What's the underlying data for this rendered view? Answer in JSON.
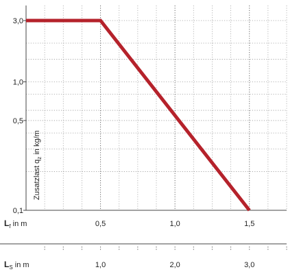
{
  "chart_data": {
    "type": "line",
    "y_scale": "log",
    "ylabel_main": "Zusatzlast q",
    "ylabel_sub": "z",
    "ylabel_unit": " in kg/m",
    "ylim": [
      0.1,
      4.0
    ],
    "yticks": [
      3.0,
      1.0,
      0.5,
      0.1
    ],
    "ytick_labels": [
      "3,0",
      "1,0",
      "0,5",
      "0,1"
    ],
    "x_primary": {
      "label_main": "L",
      "label_sub": "f",
      "label_unit": "in m",
      "xlim": [
        0,
        1.75
      ],
      "ticks": [
        0.5,
        1.0,
        1.5
      ],
      "tick_labels": [
        "0,5",
        "1,0",
        "1,5"
      ]
    },
    "x_secondary": {
      "label_main": "L",
      "label_sub": "S",
      "label_unit": "in m",
      "xlim": [
        0,
        3.5
      ],
      "ticks": [
        1.0,
        2.0,
        3.0
      ],
      "tick_labels": [
        "1,0",
        "2,0",
        "3,0"
      ]
    },
    "grid": true,
    "series": [
      {
        "x": [
          0.0,
          0.5,
          1.5
        ],
        "y": [
          3.0,
          3.0,
          0.1
        ],
        "color": "#b5222b"
      }
    ]
  }
}
